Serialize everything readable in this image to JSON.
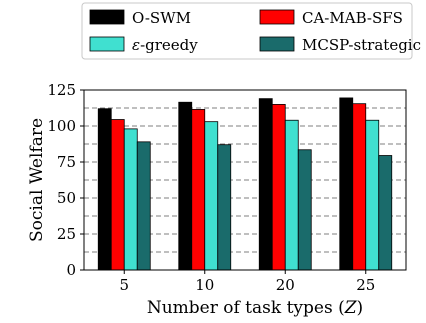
{
  "chart_data": {
    "type": "bar",
    "xlabel": "Number of task types (Z)",
    "ylabel": "Social Welfare",
    "categories": [
      "5",
      "10",
      "20",
      "25"
    ],
    "ylim": [
      0,
      125
    ],
    "yticks": [
      0,
      25,
      50,
      75,
      100,
      125
    ],
    "grid": "horizontal dashed",
    "legend_position": "top, above plot",
    "series": [
      {
        "name": "O-SWM",
        "color": "#000000",
        "values": [
          112,
          116.5,
          119,
          119.5
        ]
      },
      {
        "name": "CA-MAB-SFS",
        "color": "#ff0000",
        "values": [
          104.5,
          111.5,
          115,
          115.5
        ]
      },
      {
        "name": "ε-greedy",
        "color": "#40e0d0",
        "values": [
          98,
          103,
          104,
          104
        ]
      },
      {
        "name": "MCSP-strategic",
        "color": "#1a6b6b",
        "values": [
          89,
          87,
          83.5,
          79.5
        ]
      }
    ]
  }
}
